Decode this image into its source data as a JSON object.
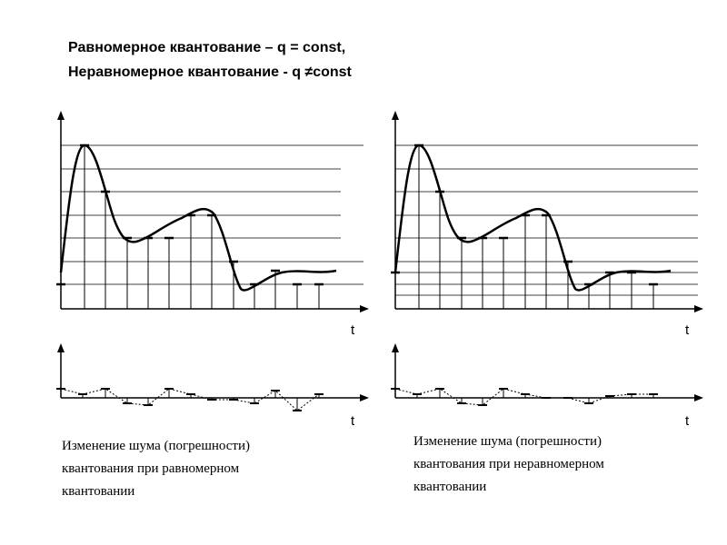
{
  "title": {
    "line1": "Равномерное квантование – q = const,",
    "line2": "Неравномерное квантование - q ≠const"
  },
  "panels": [
    {
      "signal_axis_label": "t",
      "noise_axis_label": "t",
      "caption": [
        "Изменение шума (погрешности)",
        "квантования при равномерном",
        "квантовании"
      ]
    },
    {
      "signal_axis_label": "t",
      "noise_axis_label": "t",
      "caption": [
        "Изменение шума (погрешности)",
        "квантования при неравномерном",
        "квантовании"
      ]
    }
  ]
}
